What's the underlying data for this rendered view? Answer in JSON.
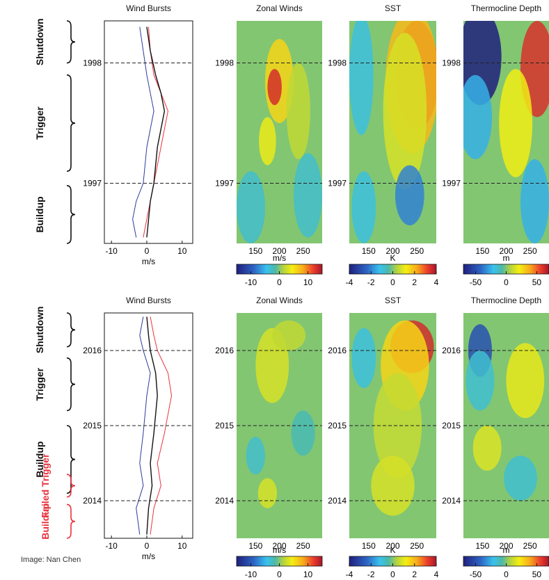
{
  "credit": "Image: Nan Chen",
  "chart_data": [
    {
      "type": "line",
      "title": "Wind Bursts",
      "xlabel": "m/s",
      "xticks": [
        -10,
        0,
        10
      ],
      "xlim": [
        -12,
        13
      ],
      "ylim": [
        1996.5,
        1998.35
      ],
      "year_marks": [
        1997,
        1998
      ],
      "phases": [
        {
          "label": "Shutdown",
          "from": 1998.0,
          "to": 1998.35
        },
        {
          "label": "Trigger",
          "from": 1997.1,
          "to": 1997.9
        },
        {
          "label": "Buildup",
          "from": 1996.5,
          "to": 1996.98
        }
      ],
      "series": [
        {
          "name": "",
          "color": "#e8333d",
          "x": [
            -1,
            0,
            1,
            2,
            4,
            6,
            4,
            2,
            1,
            0.5
          ],
          "y": [
            1996.55,
            1996.7,
            1996.85,
            1997.0,
            1997.3,
            1997.6,
            1997.75,
            1997.9,
            1998.1,
            1998.3
          ]
        },
        {
          "name": "",
          "color": "#2b3a9e",
          "x": [
            -3,
            -4,
            -3,
            -1,
            0,
            2,
            1,
            0,
            -1,
            -2
          ],
          "y": [
            1996.55,
            1996.7,
            1996.85,
            1997.0,
            1997.3,
            1997.6,
            1997.75,
            1997.9,
            1998.1,
            1998.3
          ]
        },
        {
          "name": "",
          "color": "#111111",
          "x": [
            0,
            0.5,
            1,
            2,
            3,
            5,
            4,
            2.5,
            1,
            0
          ],
          "y": [
            1996.55,
            1996.7,
            1996.85,
            1997.0,
            1997.3,
            1997.6,
            1997.75,
            1997.9,
            1998.1,
            1998.3
          ]
        }
      ]
    },
    {
      "type": "heatmap",
      "title": "Zonal Winds",
      "xlabel": "",
      "colorbar_label": "m/s",
      "xticks": [
        150,
        200,
        250
      ],
      "colorbar_ticks": [
        -10,
        0,
        10
      ],
      "clim": [
        -15,
        15
      ],
      "year_marks": [
        1997,
        1998
      ],
      "blobs": [
        {
          "cx": 200,
          "cy": 1997.85,
          "rx": 30,
          "ry": 0.35,
          "value": 6
        },
        {
          "cx": 190,
          "cy": 1997.8,
          "rx": 15,
          "ry": 0.15,
          "value": 13
        },
        {
          "cx": 175,
          "cy": 1997.35,
          "rx": 18,
          "ry": 0.2,
          "value": 4
        },
        {
          "cx": 240,
          "cy": 1997.6,
          "rx": 25,
          "ry": 0.4,
          "value": 2
        },
        {
          "cx": 140,
          "cy": 1996.8,
          "rx": 30,
          "ry": 0.3,
          "value": -3
        },
        {
          "cx": 260,
          "cy": 1996.9,
          "rx": 30,
          "ry": 0.35,
          "value": -3
        }
      ]
    },
    {
      "type": "heatmap",
      "title": "SST",
      "xlabel": "",
      "colorbar_label": "K",
      "xticks": [
        150,
        200,
        250
      ],
      "colorbar_ticks": [
        -4,
        -2,
        0,
        2,
        4
      ],
      "clim": [
        -4,
        4
      ],
      "year_marks": [
        1997,
        1998
      ],
      "blobs": [
        {
          "cx": 250,
          "cy": 1997.9,
          "rx": 45,
          "ry": 0.45,
          "value": 3.8
        },
        {
          "cx": 240,
          "cy": 1997.85,
          "rx": 55,
          "ry": 0.6,
          "value": 2
        },
        {
          "cx": 225,
          "cy": 1997.6,
          "rx": 45,
          "ry": 0.65,
          "value": 0.8
        },
        {
          "cx": 235,
          "cy": 1996.9,
          "rx": 30,
          "ry": 0.25,
          "value": -2
        },
        {
          "cx": 135,
          "cy": 1997.9,
          "rx": 25,
          "ry": 0.5,
          "value": -1
        },
        {
          "cx": 140,
          "cy": 1996.8,
          "rx": 25,
          "ry": 0.3,
          "value": -1
        }
      ]
    },
    {
      "type": "heatmap",
      "title": "Thermocline Depth",
      "xlabel": "",
      "colorbar_label": "m",
      "xticks": [
        150,
        200,
        250
      ],
      "colorbar_ticks": [
        -50,
        0,
        50
      ],
      "clim": [
        -70,
        70
      ],
      "year_marks": [
        1997,
        1998
      ],
      "blobs": [
        {
          "cx": 145,
          "cy": 1998.05,
          "rx": 45,
          "ry": 0.4,
          "value": -70
        },
        {
          "cx": 135,
          "cy": 1997.55,
          "rx": 35,
          "ry": 0.35,
          "value": -25
        },
        {
          "cx": 265,
          "cy": 1997.95,
          "rx": 35,
          "ry": 0.4,
          "value": 60
        },
        {
          "cx": 220,
          "cy": 1997.5,
          "rx": 35,
          "ry": 0.45,
          "value": 20
        },
        {
          "cx": 260,
          "cy": 1996.85,
          "rx": 30,
          "ry": 0.35,
          "value": -25
        }
      ]
    },
    {
      "type": "line",
      "title": "Wind Bursts",
      "xlabel": "m/s",
      "xticks": [
        -10,
        0,
        10
      ],
      "xlim": [
        -12,
        13
      ],
      "ylim": [
        2013.5,
        2016.5
      ],
      "year_marks": [
        2014,
        2015,
        2016
      ],
      "phases": [
        {
          "label": "Shutdown",
          "from": 2016.05,
          "to": 2016.5
        },
        {
          "label": "Trigger",
          "from": 2015.2,
          "to": 2015.9
        },
        {
          "label": "Buildup",
          "from": 2014.1,
          "to": 2015.0
        },
        {
          "label": "Failed Trigger",
          "from": 2014.05,
          "to": 2014.35,
          "color": "#e8333d"
        },
        {
          "label": "Buildup",
          "from": 2013.5,
          "to": 2013.95,
          "color": "#e8333d"
        }
      ],
      "series": [
        {
          "name": "",
          "color": "#e8333d",
          "x": [
            1,
            2,
            4,
            3,
            5,
            7,
            6,
            3,
            2,
            1
          ],
          "y": [
            2013.55,
            2013.9,
            2014.2,
            2014.5,
            2014.9,
            2015.4,
            2015.7,
            2016.0,
            2016.2,
            2016.45
          ]
        },
        {
          "name": "",
          "color": "#2b3a9e",
          "x": [
            -2,
            -3,
            -1,
            -2,
            -1,
            0,
            1,
            -1,
            -2,
            -1
          ],
          "y": [
            2013.55,
            2013.9,
            2014.2,
            2014.5,
            2014.9,
            2015.4,
            2015.7,
            2016.0,
            2016.2,
            2016.45
          ]
        },
        {
          "name": "",
          "color": "#111111",
          "x": [
            0,
            0.5,
            1.5,
            1,
            2,
            3,
            2.5,
            1,
            0.5,
            0
          ],
          "y": [
            2013.55,
            2013.9,
            2014.2,
            2014.5,
            2014.9,
            2015.4,
            2015.7,
            2016.0,
            2016.2,
            2016.45
          ]
        }
      ]
    },
    {
      "type": "heatmap",
      "title": "Zonal Winds",
      "xlabel": "",
      "colorbar_label": "m/s",
      "xticks": [
        150,
        200,
        250
      ],
      "colorbar_ticks": [
        -10,
        0,
        10
      ],
      "clim": [
        -15,
        15
      ],
      "year_marks": [
        2014,
        2015,
        2016
      ],
      "blobs": [
        {
          "cx": 185,
          "cy": 2015.8,
          "rx": 35,
          "ry": 0.5,
          "value": 3
        },
        {
          "cx": 220,
          "cy": 2016.2,
          "rx": 35,
          "ry": 0.2,
          "value": 2
        },
        {
          "cx": 150,
          "cy": 2014.6,
          "rx": 20,
          "ry": 0.25,
          "value": -3
        },
        {
          "cx": 250,
          "cy": 2014.9,
          "rx": 25,
          "ry": 0.3,
          "value": -2
        },
        {
          "cx": 175,
          "cy": 2014.1,
          "rx": 20,
          "ry": 0.2,
          "value": 3
        }
      ]
    },
    {
      "type": "heatmap",
      "title": "SST",
      "xlabel": "",
      "colorbar_label": "K",
      "xticks": [
        150,
        200,
        250
      ],
      "colorbar_ticks": [
        -4,
        -2,
        0,
        2,
        4
      ],
      "clim": [
        -4,
        4
      ],
      "year_marks": [
        2014,
        2015,
        2016
      ],
      "blobs": [
        {
          "cx": 240,
          "cy": 2016.05,
          "rx": 45,
          "ry": 0.35,
          "value": 3.5
        },
        {
          "cx": 225,
          "cy": 2015.8,
          "rx": 50,
          "ry": 0.6,
          "value": 1.6
        },
        {
          "cx": 210,
          "cy": 2015.0,
          "rx": 50,
          "ry": 0.7,
          "value": 0.6
        },
        {
          "cx": 140,
          "cy": 2015.9,
          "rx": 25,
          "ry": 0.4,
          "value": -1
        },
        {
          "cx": 200,
          "cy": 2014.2,
          "rx": 45,
          "ry": 0.4,
          "value": 0.8
        }
      ]
    },
    {
      "type": "heatmap",
      "title": "Thermocline Depth",
      "xlabel": "",
      "colorbar_label": "m",
      "xticks": [
        150,
        200,
        250
      ],
      "colorbar_ticks": [
        -50,
        0,
        50
      ],
      "clim": [
        -70,
        70
      ],
      "year_marks": [
        2014,
        2015,
        2016
      ],
      "blobs": [
        {
          "cx": 145,
          "cy": 2016.0,
          "rx": 25,
          "ry": 0.35,
          "value": -50
        },
        {
          "cx": 145,
          "cy": 2015.6,
          "rx": 30,
          "ry": 0.4,
          "value": -15
        },
        {
          "cx": 240,
          "cy": 2015.6,
          "rx": 40,
          "ry": 0.5,
          "value": 18
        },
        {
          "cx": 230,
          "cy": 2014.3,
          "rx": 35,
          "ry": 0.3,
          "value": -15
        },
        {
          "cx": 160,
          "cy": 2014.7,
          "rx": 30,
          "ry": 0.3,
          "value": 15
        }
      ]
    }
  ]
}
